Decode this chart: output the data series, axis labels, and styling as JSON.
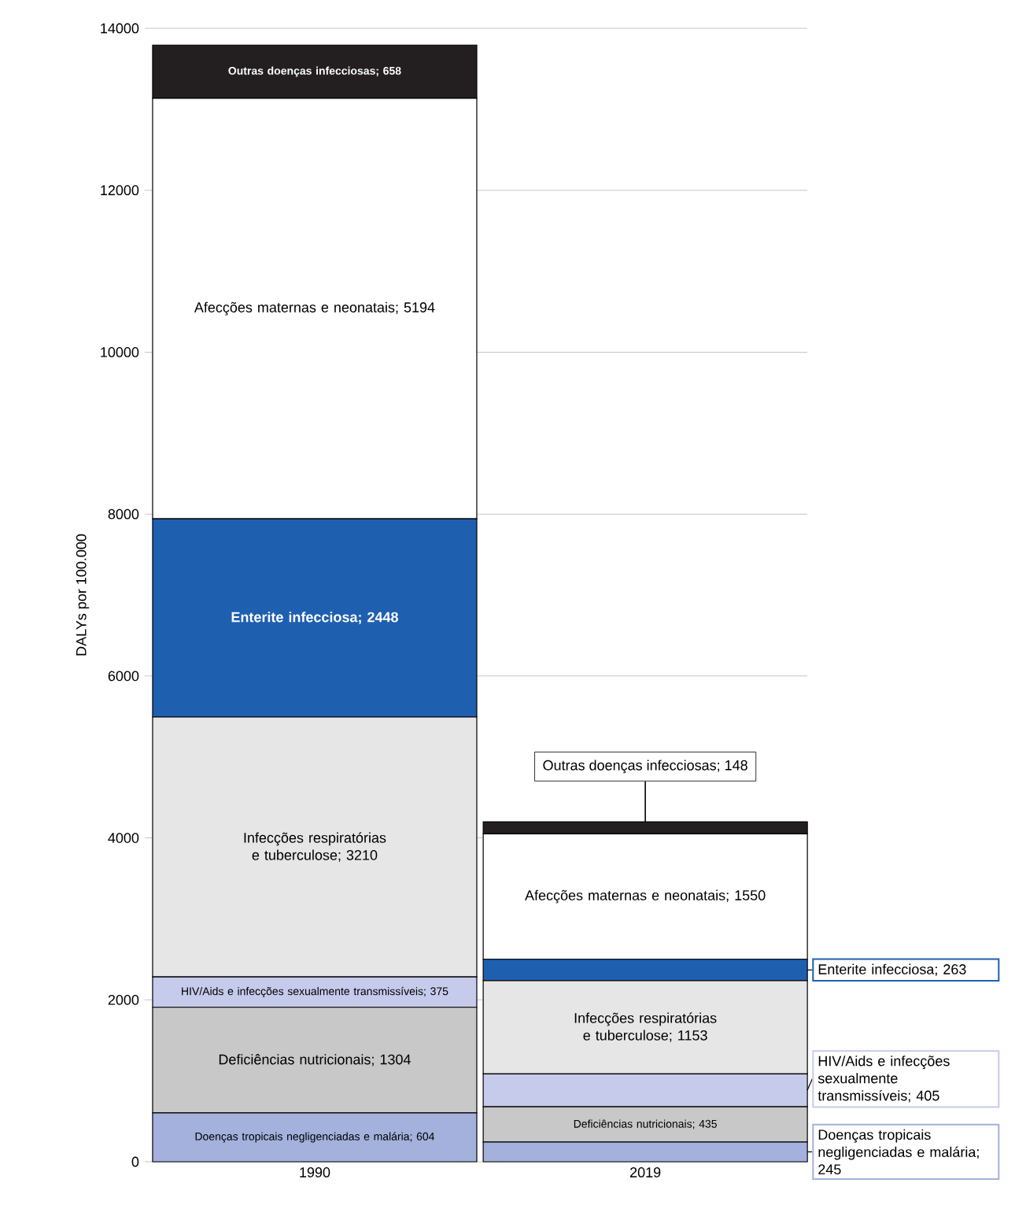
{
  "chart_data": {
    "type": "bar",
    "stacked": true,
    "categories": [
      "1990",
      "2019"
    ],
    "ylabel": "DALYs por 100.000",
    "ylim": [
      0,
      14000
    ],
    "yticks": [
      0,
      2000,
      4000,
      6000,
      8000,
      10000,
      12000,
      14000
    ],
    "grid": "y",
    "series": [
      {
        "color": "#a3b1dc",
        "values": [
          604,
          245
        ],
        "value_labels": [
          "Doenças tropicais negligenciadas e malária; 604",
          "Doenças tropicais negligenciadas e malária; 245"
        ]
      },
      {
        "color": "#c8c8c8",
        "values": [
          1304,
          435
        ],
        "value_labels": [
          "Deficiências nutricionais; 1304",
          "Deficiências nutricionais; 435"
        ]
      },
      {
        "color": "#c6cbeb",
        "values": [
          375,
          405
        ],
        "value_labels": [
          "HIV/Aids e infecções sexualmente transmissíveis; 375",
          "HIV/Aids e infecções sexualmente transmissíveis; 405"
        ]
      },
      {
        "color": "#e6e6e6",
        "values": [
          3210,
          1153
        ],
        "value_labels": [
          "Infecções respiratórias e tuberculose; 3210",
          "Infecções respiratórias e tuberculose; 1153"
        ]
      },
      {
        "color": "#1f5fb0",
        "values": [
          2448,
          263
        ],
        "value_labels": [
          "Enterite infecciosa; 2448",
          "Enterite infecciosa; 263"
        ]
      },
      {
        "color": "#ffffff",
        "values": [
          5194,
          1550
        ],
        "value_labels": [
          "Afecções maternas e neonatais; 5194",
          "Afecções maternas e neonatais; 1550"
        ]
      },
      {
        "color": "#231f20",
        "values": [
          658,
          148
        ],
        "value_labels": [
          "Outras doenças infecciosas; 658",
          "Outras doenças infecciosas; 148"
        ]
      }
    ]
  }
}
